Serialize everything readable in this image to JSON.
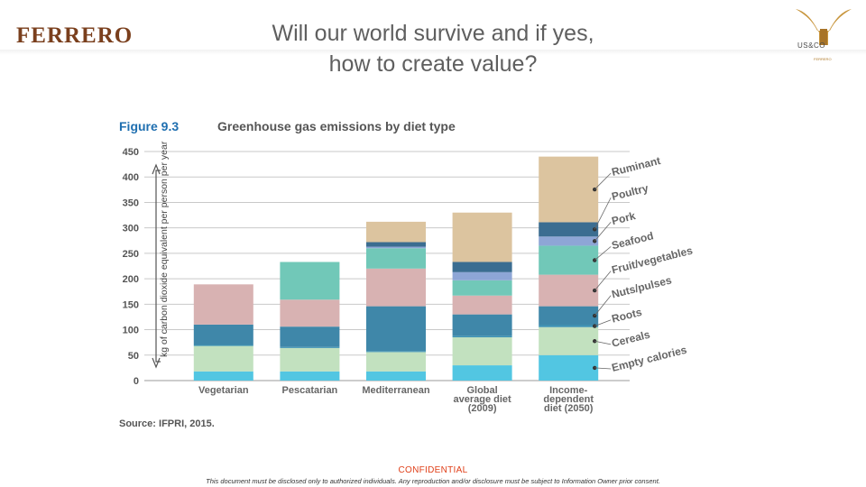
{
  "header": {
    "logo_left": "FERRERO",
    "title_line1": "Will our world survive and if yes,",
    "title_line2": "how to create value?",
    "logo_right_text": "US&CO",
    "logo_right_sub": "FERRERO"
  },
  "footer": {
    "confidential": "CONFIDENTIAL",
    "notice": "This document must be disclosed only to authorized individuals. Any reproduction and/or disclosure must be subject to Information Owner prior consent."
  },
  "colors": {
    "empty_calories": "#52c6e2",
    "cereals": "#c2e1bf",
    "roots": "#3d93b4",
    "nuts_pulses": "#3f87a9",
    "fruit_vegetables": "#d8b2b2",
    "seafood": "#71c8b8",
    "pork": "#8ea6d6",
    "poultry": "#3b6d91",
    "ruminant": "#dcc49f"
  },
  "chart_data": {
    "type": "bar",
    "stacked": true,
    "figure_label": "Figure 9.3",
    "title": "Greenhouse gas emissions by diet type",
    "ylabel": "kg of carbon dioxide equivalent per person per year",
    "ylim": [
      0,
      450
    ],
    "yticks": [
      0,
      50,
      100,
      150,
      200,
      250,
      300,
      350,
      400,
      450
    ],
    "grid": true,
    "source": "Source: IFPRI, 2015.",
    "categories": [
      [
        "Vegetarian"
      ],
      [
        "Pescatarian"
      ],
      [
        "Mediterranean"
      ],
      [
        "Global",
        "average diet",
        "(2009)"
      ],
      [
        "Income-",
        "dependent",
        "diet (2050)"
      ]
    ],
    "series": [
      {
        "name": "Empty calories",
        "color_key": "empty_calories",
        "values": [
          18,
          18,
          18,
          30,
          50
        ]
      },
      {
        "name": "Cereals",
        "color_key": "cereals",
        "values": [
          50,
          46,
          38,
          55,
          55
        ]
      },
      {
        "name": "Roots",
        "color_key": "roots",
        "values": [
          2,
          2,
          2,
          3,
          4
        ]
      },
      {
        "name": "Nuts/pulses",
        "color_key": "nuts_pulses",
        "values": [
          40,
          40,
          88,
          42,
          37
        ]
      },
      {
        "name": "Fruit/vegetables",
        "color_key": "fruit_vegetables",
        "values": [
          79,
          53,
          74,
          37,
          62
        ]
      },
      {
        "name": "Seafood",
        "color_key": "seafood",
        "values": [
          0,
          74,
          40,
          30,
          57
        ]
      },
      {
        "name": "Pork",
        "color_key": "pork",
        "values": [
          0,
          0,
          3,
          16,
          18
        ]
      },
      {
        "name": "Poultry",
        "color_key": "poultry",
        "values": [
          0,
          0,
          9,
          20,
          28
        ]
      },
      {
        "name": "Ruminant",
        "color_key": "ruminant",
        "values": [
          0,
          0,
          40,
          97,
          129
        ]
      }
    ],
    "annotations": [
      "Ruminant",
      "Poultry",
      "Pork",
      "Seafood",
      "Fruit/vegetables",
      "Nuts/pulses",
      "Roots",
      "Cereals",
      "Empty calories"
    ]
  }
}
